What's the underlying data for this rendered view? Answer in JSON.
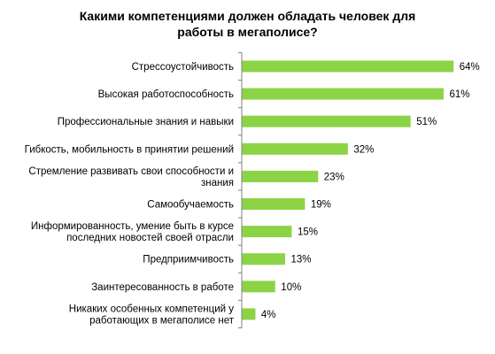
{
  "chart_data": {
    "type": "bar",
    "orientation": "horizontal",
    "title": "Какими компетенциями должен обладать человек для работы в мегаполисе?",
    "title_lines": [
      "Какими компетенциями должен обладать человек для",
      "работы в мегаполисе?"
    ],
    "categories": [
      [
        "Стрессоустойчивость"
      ],
      [
        "Высокая работоспособность"
      ],
      [
        "Профессиональные знания и навыки"
      ],
      [
        "Гибкость, мобильность в принятии решений"
      ],
      [
        "Стремление развивать свои способности и",
        "знания"
      ],
      [
        "Самообучаемость"
      ],
      [
        "Информированность, умение быть в курсе",
        "последних новостей своей отрасли"
      ],
      [
        "Предприимчивость"
      ],
      [
        "Заинтересованность в работе"
      ],
      [
        "Никаких особенных компетенций у",
        "работающих в мегаполисе нет"
      ]
    ],
    "values": [
      64,
      61,
      51,
      32,
      23,
      19,
      15,
      13,
      10,
      4
    ],
    "value_labels": [
      "64%",
      "61%",
      "51%",
      "32%",
      "23%",
      "19%",
      "15%",
      "13%",
      "10%",
      "4%"
    ],
    "xlim": [
      0,
      70
    ],
    "grid": false,
    "legend": "none",
    "colors": {
      "bar": "#8cd446",
      "axis": "#808080",
      "text": "#000000"
    }
  }
}
